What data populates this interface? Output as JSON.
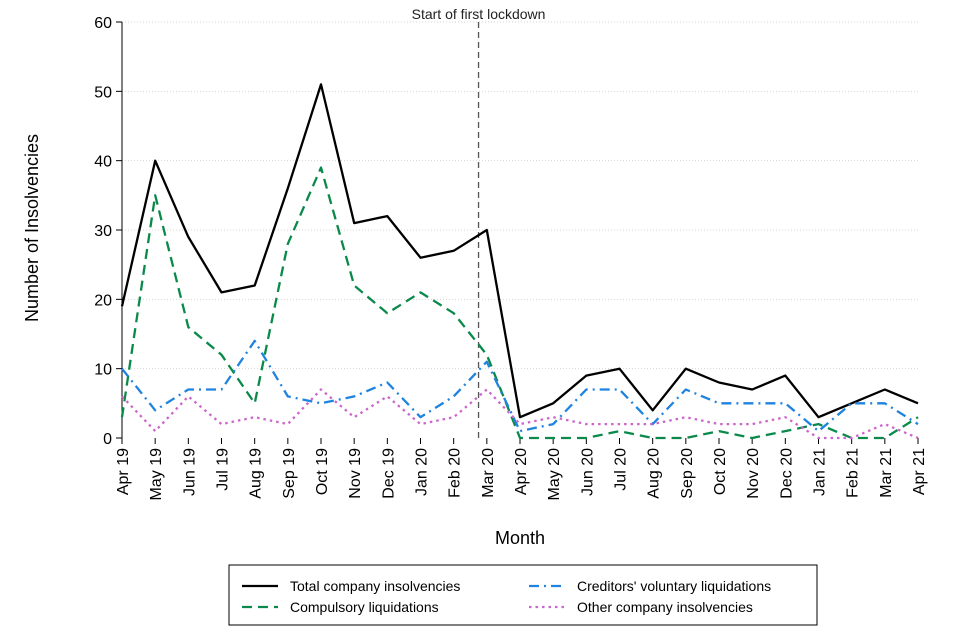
{
  "chart_data": {
    "type": "line",
    "title": "",
    "xlabel": "Month",
    "ylabel": "Number of Insolvencies",
    "ylim": [
      0,
      60
    ],
    "yticks": [
      0,
      10,
      20,
      30,
      40,
      50,
      60
    ],
    "grid": "horizontal dotted",
    "categories": [
      "Apr 19",
      "May 19",
      "Jun 19",
      "Jul 19",
      "Aug 19",
      "Sep 19",
      "Oct 19",
      "Nov 19",
      "Dec 19",
      "Jan 20",
      "Feb 20",
      "Mar 20",
      "Apr 20",
      "May 20",
      "Jun 20",
      "Jul 20",
      "Aug 20",
      "Sep 20",
      "Oct 20",
      "Nov 20",
      "Dec 20",
      "Jan 21",
      "Feb 21",
      "Mar 21",
      "Apr 21"
    ],
    "annotation": {
      "text": "Start of first lockdown",
      "at_category": "Mar 20",
      "offset": 0.75
    },
    "legend_position": "bottom",
    "series": [
      {
        "name": "Total company insolvencies",
        "color": "#000000",
        "dash": "solid",
        "values": [
          19,
          40,
          29,
          21,
          22,
          36,
          51,
          31,
          32,
          26,
          27,
          30,
          3,
          5,
          9,
          10,
          4,
          10,
          8,
          7,
          9,
          3,
          5,
          7,
          5
        ]
      },
      {
        "name": "Compulsory liquidations",
        "color": "#0a8a4a",
        "dash": "dashed",
        "values": [
          3,
          35,
          16,
          12,
          5,
          28,
          39,
          22,
          18,
          21,
          18,
          12,
          0,
          0,
          0,
          1,
          0,
          0,
          1,
          0,
          1,
          2,
          0,
          0,
          3
        ]
      },
      {
        "name": "Creditors' voluntary liquidations",
        "color": "#1f83e0",
        "dash": "dashdot",
        "values": [
          10,
          4,
          7,
          7,
          14,
          6,
          5,
          6,
          8,
          3,
          6,
          11,
          1,
          2,
          7,
          7,
          2,
          7,
          5,
          5,
          5,
          1,
          5,
          5,
          2
        ]
      },
      {
        "name": "Other company insolvencies",
        "color": "#cc66cc",
        "dash": "dotted",
        "values": [
          6,
          1,
          6,
          2,
          3,
          2,
          7,
          3,
          6,
          2,
          3,
          7,
          2,
          3,
          2,
          2,
          2,
          3,
          2,
          2,
          3,
          0,
          0,
          2,
          0
        ]
      }
    ]
  }
}
